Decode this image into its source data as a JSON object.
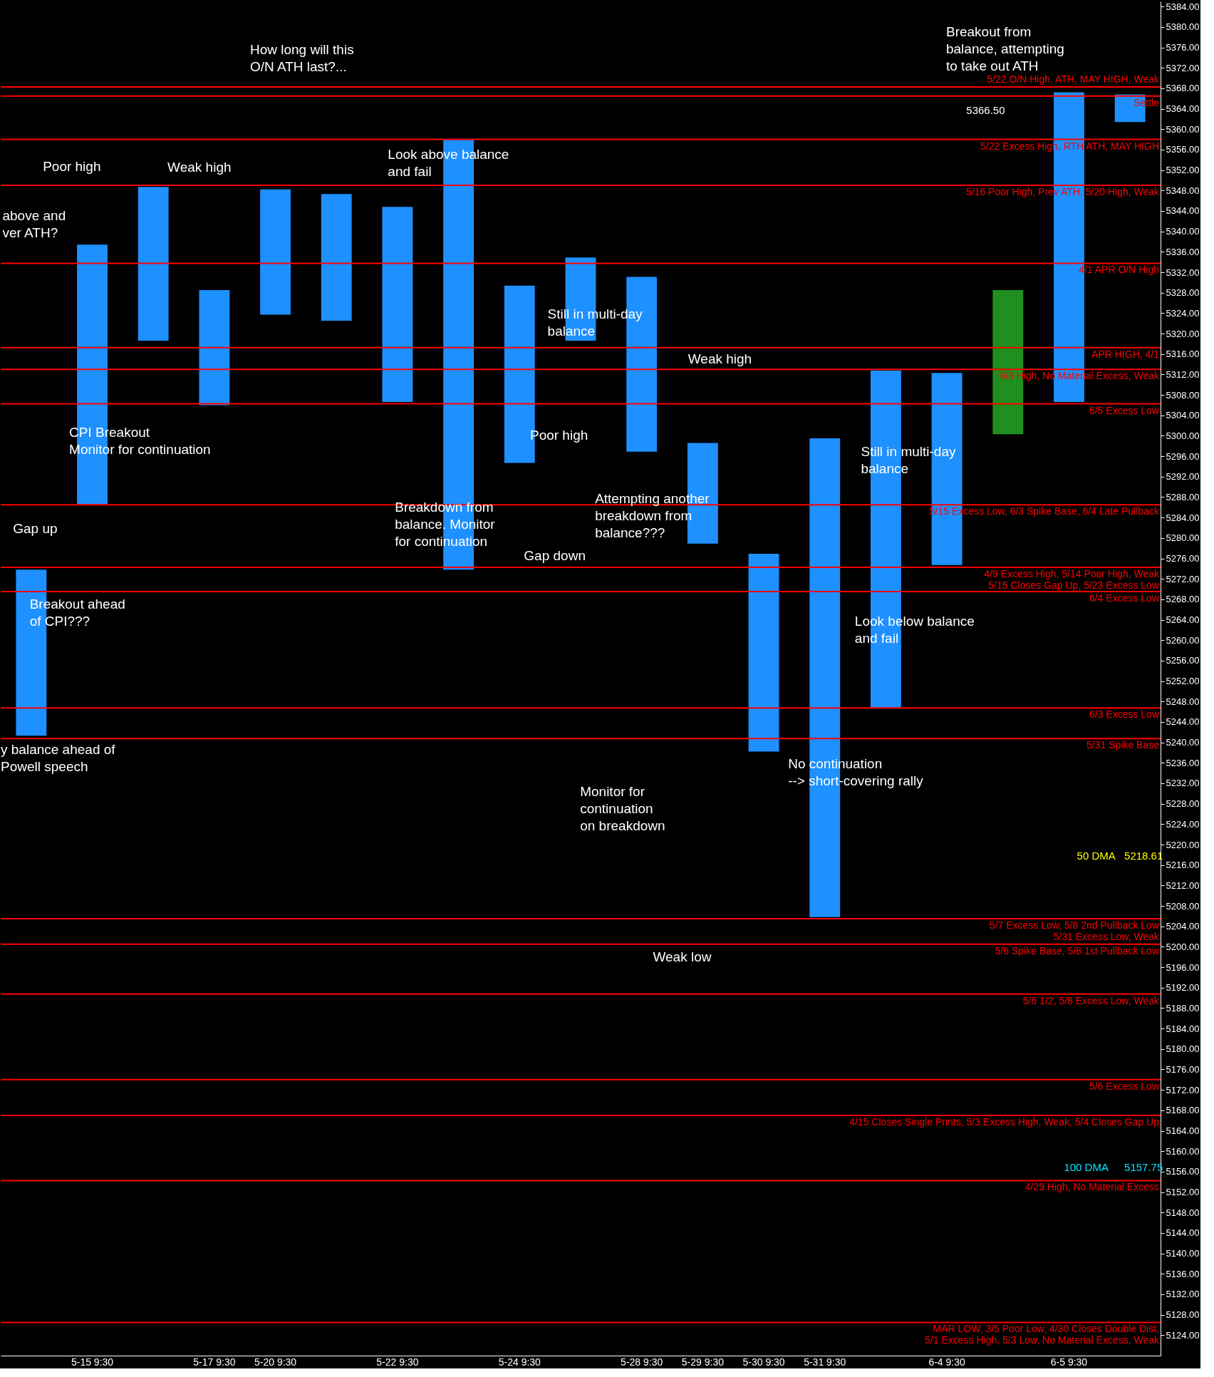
{
  "chart_data": {
    "type": "bar",
    "categories": [
      null,
      "5-15  9:30",
      null,
      "5-17  9:30",
      "5-20  9:30",
      null,
      "5-22  9:30",
      null,
      "5-24  9:30",
      null,
      "5-28  9:30",
      "5-29  9:30",
      "5-30  9:30",
      "5-31  9:30",
      null,
      "6-4  9:30",
      null,
      "6-5  9:30",
      null
    ],
    "base": [
      5241.3,
      5286.6,
      5318.6,
      5306.0,
      5323.7,
      5322.5,
      5306.6,
      5273.8,
      5294.7,
      5318.6,
      5296.9,
      5278.9,
      5238.2,
      5205.8,
      5246.8,
      5274.7,
      5300.3,
      5306.6,
      5361.4
    ],
    "values": [
      32.5,
      50.8,
      30.1,
      22.5,
      24.5,
      24.8,
      38.2,
      84.1,
      34.7,
      16.3,
      34.2,
      19.7,
      38.7,
      93.7,
      66.0,
      37.6,
      28.2,
      60.6,
      5.4
    ],
    "colors": [
      "#1e90ff",
      "#1e90ff",
      "#1e90ff",
      "#1e90ff",
      "#1e90ff",
      "#1e90ff",
      "#1e90ff",
      "#1e90ff",
      "#1e90ff",
      "#1e90ff",
      "#1e90ff",
      "#1e90ff",
      "#1e90ff",
      "#1e90ff",
      "#1e90ff",
      "#1e90ff",
      "#1f8f1f",
      "#1e90ff",
      "#1e90ff"
    ],
    "ylim": [
      5120,
      5385
    ],
    "yticks": [
      {
        "value": 5124,
        "label": "5124.00"
      },
      {
        "value": 5128,
        "label": "5128.00"
      },
      {
        "value": 5132,
        "label": "5132.00"
      },
      {
        "value": 5136,
        "label": "5136.00"
      },
      {
        "value": 5140,
        "label": "5140.00"
      },
      {
        "value": 5144,
        "label": "5144.00"
      },
      {
        "value": 5148,
        "label": "5148.00"
      },
      {
        "value": 5152,
        "label": "5152.00"
      },
      {
        "value": 5156,
        "label": "5156.00"
      },
      {
        "value": 5160,
        "label": "5160.00"
      },
      {
        "value": 5164,
        "label": "5164.00"
      },
      {
        "value": 5168,
        "label": "5168.00"
      },
      {
        "value": 5172,
        "label": "5172.00"
      },
      {
        "value": 5176,
        "label": "5176.00"
      },
      {
        "value": 5180,
        "label": "5180.00"
      },
      {
        "value": 5184,
        "label": "5184.00"
      },
      {
        "value": 5188,
        "label": "5188.00"
      },
      {
        "value": 5192,
        "label": "5192.00"
      },
      {
        "value": 5196,
        "label": "5196.00"
      },
      {
        "value": 5200,
        "label": "5200.00"
      },
      {
        "value": 5204,
        "label": "5204.00"
      },
      {
        "value": 5208,
        "label": "5208.00"
      },
      {
        "value": 5212,
        "label": "5212.00"
      },
      {
        "value": 5216,
        "label": "5216.00"
      },
      {
        "value": 5220,
        "label": "5220.00"
      },
      {
        "value": 5224,
        "label": "5224.00"
      },
      {
        "value": 5228,
        "label": "5228.00"
      },
      {
        "value": 5232,
        "label": "5232.00"
      },
      {
        "value": 5236,
        "label": "5236.00"
      },
      {
        "value": 5240,
        "label": "5240.00"
      },
      {
        "value": 5244,
        "label": "5244.00"
      },
      {
        "value": 5248,
        "label": "5248.00"
      },
      {
        "value": 5252,
        "label": "5252.00"
      },
      {
        "value": 5256,
        "label": "5256.00"
      },
      {
        "value": 5260,
        "label": "5260.00"
      },
      {
        "value": 5264,
        "label": "5264.00"
      },
      {
        "value": 5268,
        "label": "5268.00"
      },
      {
        "value": 5272,
        "label": "5272.00"
      },
      {
        "value": 5276,
        "label": "5276.00"
      },
      {
        "value": 5280,
        "label": "5280.00"
      },
      {
        "value": 5284,
        "label": "5284.00"
      },
      {
        "value": 5288,
        "label": "5288.00"
      },
      {
        "value": 5292,
        "label": "5292.00"
      },
      {
        "value": 5296,
        "label": "5296.00"
      },
      {
        "value": 5300,
        "label": "5300.00"
      },
      {
        "value": 5304,
        "label": "5304.00"
      },
      {
        "value": 5308,
        "label": "5308.00"
      },
      {
        "value": 5312,
        "label": "5312.00"
      },
      {
        "value": 5316,
        "label": "5316.00"
      },
      {
        "value": 5320,
        "label": "5320.00"
      },
      {
        "value": 5324,
        "label": "5324.00"
      },
      {
        "value": 5328,
        "label": "5328.00"
      },
      {
        "value": 5332,
        "label": "5332.00"
      },
      {
        "value": 5336,
        "label": "5336.00"
      },
      {
        "value": 5340,
        "label": "5340.00"
      },
      {
        "value": 5344,
        "label": "5344.00"
      },
      {
        "value": 5348,
        "label": "5348.00"
      },
      {
        "value": 5352,
        "label": "5352.00"
      },
      {
        "value": 5356,
        "label": "5356.00"
      },
      {
        "value": 5360,
        "label": "5360.00"
      },
      {
        "value": 5364,
        "label": "5364.00"
      },
      {
        "value": 5368,
        "label": "5368.00"
      },
      {
        "value": 5372,
        "label": "5372.00"
      },
      {
        "value": 5376,
        "label": "5376.00"
      },
      {
        "value": 5380,
        "label": "5380.00"
      },
      {
        "value": 5384,
        "label": "5384.00"
      }
    ],
    "grid": false,
    "ref_lines": [
      {
        "axis": "y",
        "value": 5368.25,
        "label": "5/22 O/N High, ATH, MAY HIGH, Weak",
        "color": "#ff0000"
      },
      {
        "axis": "y",
        "value": 5366.5,
        "label": "Settle",
        "color": "#ff0000"
      },
      {
        "axis": "y",
        "value": 5358,
        "label": "5/22 Excess High, RTH ATH, MAY HIGH",
        "color": "#ff0000"
      },
      {
        "axis": "y",
        "value": 5349,
        "label": "5/16 Poor High, Prev  ATH, 5/20 High, Weak",
        "color": "#ff0000"
      },
      {
        "axis": "y",
        "value": 5333.75,
        "label": "4/1 APR O/N High",
        "color": "#ff0000"
      },
      {
        "axis": "y",
        "value": 5317.25,
        "label": "APR HIGH, 4/1",
        "color": "#ff0000"
      },
      {
        "axis": "y",
        "value": 5313,
        "label": "6/3 High, No Material Excess, Weak",
        "color": "#ff0000"
      },
      {
        "axis": "y",
        "value": 5306.25,
        "label": "6/5 Excess Low",
        "color": "#ff0000"
      },
      {
        "axis": "y",
        "value": 5286.5,
        "label": "5/15 Excess Low, 6/3 Spike Base, 6/4 Late Pullback",
        "color": "#ff0000"
      },
      {
        "axis": "y",
        "value": 5274.25,
        "label": "4/9 Excess High, 5/14 Poor High, Weak\n5/15 Closes Gap Up, 5/23 Excess Low",
        "color": "#ff0000"
      },
      {
        "axis": "y",
        "value": 5269.5,
        "label": "6/4 Excess Low",
        "color": "#ff0000"
      },
      {
        "axis": "y",
        "value": 5246.75,
        "label": "6/3 Excess Low",
        "color": "#ff0000"
      },
      {
        "axis": "y",
        "value": 5240.75,
        "label": "5/31 Spike Base",
        "color": "#ff0000"
      },
      {
        "axis": "y",
        "value": 5205.5,
        "label": "5/7 Excess Low, 5/8 2nd Pullback Low\n5/31 Excess Low, Weak",
        "color": "#ff0000"
      },
      {
        "axis": "y",
        "value": 5200.5,
        "label": "5/6 Spike Base, 5/8 1st Pullback Low",
        "color": "#ff0000"
      },
      {
        "axis": "y",
        "value": 5190.75,
        "label": "5/6 1/2, 5/8 Excess Low, Weak",
        "color": "#ff0000"
      },
      {
        "axis": "y",
        "value": 5174,
        "label": "5/6 Excess Low",
        "color": "#ff0000"
      },
      {
        "axis": "y",
        "value": 5167,
        "label": "4/15 Closes Single Prints, 5/3 Excess High, Weak, 5/4 Closes Gap Up",
        "color": "#ff0000"
      },
      {
        "axis": "y",
        "value": 5154.25,
        "label": "4/29 High, No Material Excess",
        "color": "#ff0000"
      },
      {
        "axis": "y",
        "value": 5126.5,
        "label": "MAR LOW, 3/5 Poor Low, 4/30 Closes Double Dist,\n5/1 Excess High, 5/3 Low, No Material Excess, Weak",
        "color": "#ff0000"
      }
    ],
    "annotations": [
      "How long will this\nO/N ATH last?...",
      "Breakout from\nbalance, attempting\nto take out ATH",
      "Poor high",
      "Weak high",
      "Look above balance\nand fail",
      "above and\nver ATH?",
      "Still in multi-day\nbalance",
      "Weak high",
      "CPI Breakout\nMonitor for continuation",
      "Poor high",
      "Still in multi-day\nbalance",
      "Attempting another\nbreakdown from\nbalance???",
      "Breakdown from\nbalance. Monitor\nfor continuation",
      "Gap up",
      "Gap down",
      "Breakout ahead\nof CPI???",
      "Look below balance\nand fail",
      "y balance ahead of\nPowell speech",
      "No continuation\n--> short-covering rally",
      "Monitor for\ncontinuation\non breakdown",
      "Weak low",
      "5366.50",
      "50 DMA",
      "5218.61",
      "100 DMA",
      "5157.75"
    ]
  }
}
